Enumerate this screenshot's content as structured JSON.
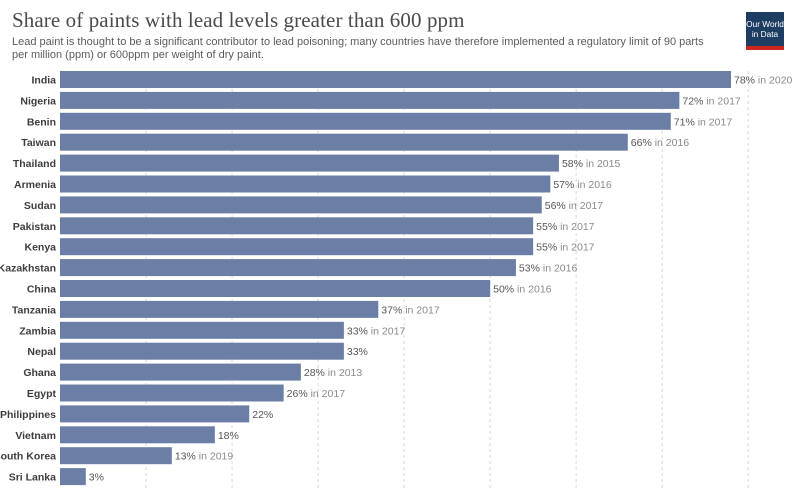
{
  "header": {
    "title": "Share of paints with lead levels greater than 600 ppm",
    "subtitle": "Lead paint is thought to be a significant contributor to lead poisoning; many countries have therefore implemented a regulatory limit of 90 parts per million (ppm) or 600ppm per weight of dry paint."
  },
  "logo": {
    "line1": "Our World",
    "line2": "in Data"
  },
  "colors": {
    "bar": "#6b7fa6",
    "logo_bg": "#1d3d63",
    "logo_accent": "#ce261e"
  },
  "chart_data": {
    "type": "bar",
    "orientation": "horizontal",
    "grid": true,
    "xlim": [
      0,
      80
    ],
    "unit": "%",
    "categories": [
      "India",
      "Nigeria",
      "Benin",
      "Taiwan",
      "Thailand",
      "Armenia",
      "Sudan",
      "Pakistan",
      "Kenya",
      "Kazakhstan",
      "China",
      "Tanzania",
      "Zambia",
      "Nepal",
      "Ghana",
      "Egypt",
      "Philippines",
      "Vietnam",
      "South Korea",
      "Sri Lanka"
    ],
    "values": [
      78,
      72,
      71,
      66,
      58,
      57,
      56,
      55,
      55,
      53,
      50,
      37,
      33,
      33,
      28,
      26,
      22,
      18,
      13,
      3
    ],
    "years": [
      "in 2020",
      "in 2017",
      "in 2017",
      "in 2016",
      "in 2015",
      "in 2016",
      "in 2017",
      "in 2017",
      "in 2017",
      "in 2016",
      "in 2016",
      "in 2017",
      "in 2017",
      "",
      "in 2013",
      "in 2017",
      "",
      "",
      "in 2019",
      ""
    ]
  }
}
